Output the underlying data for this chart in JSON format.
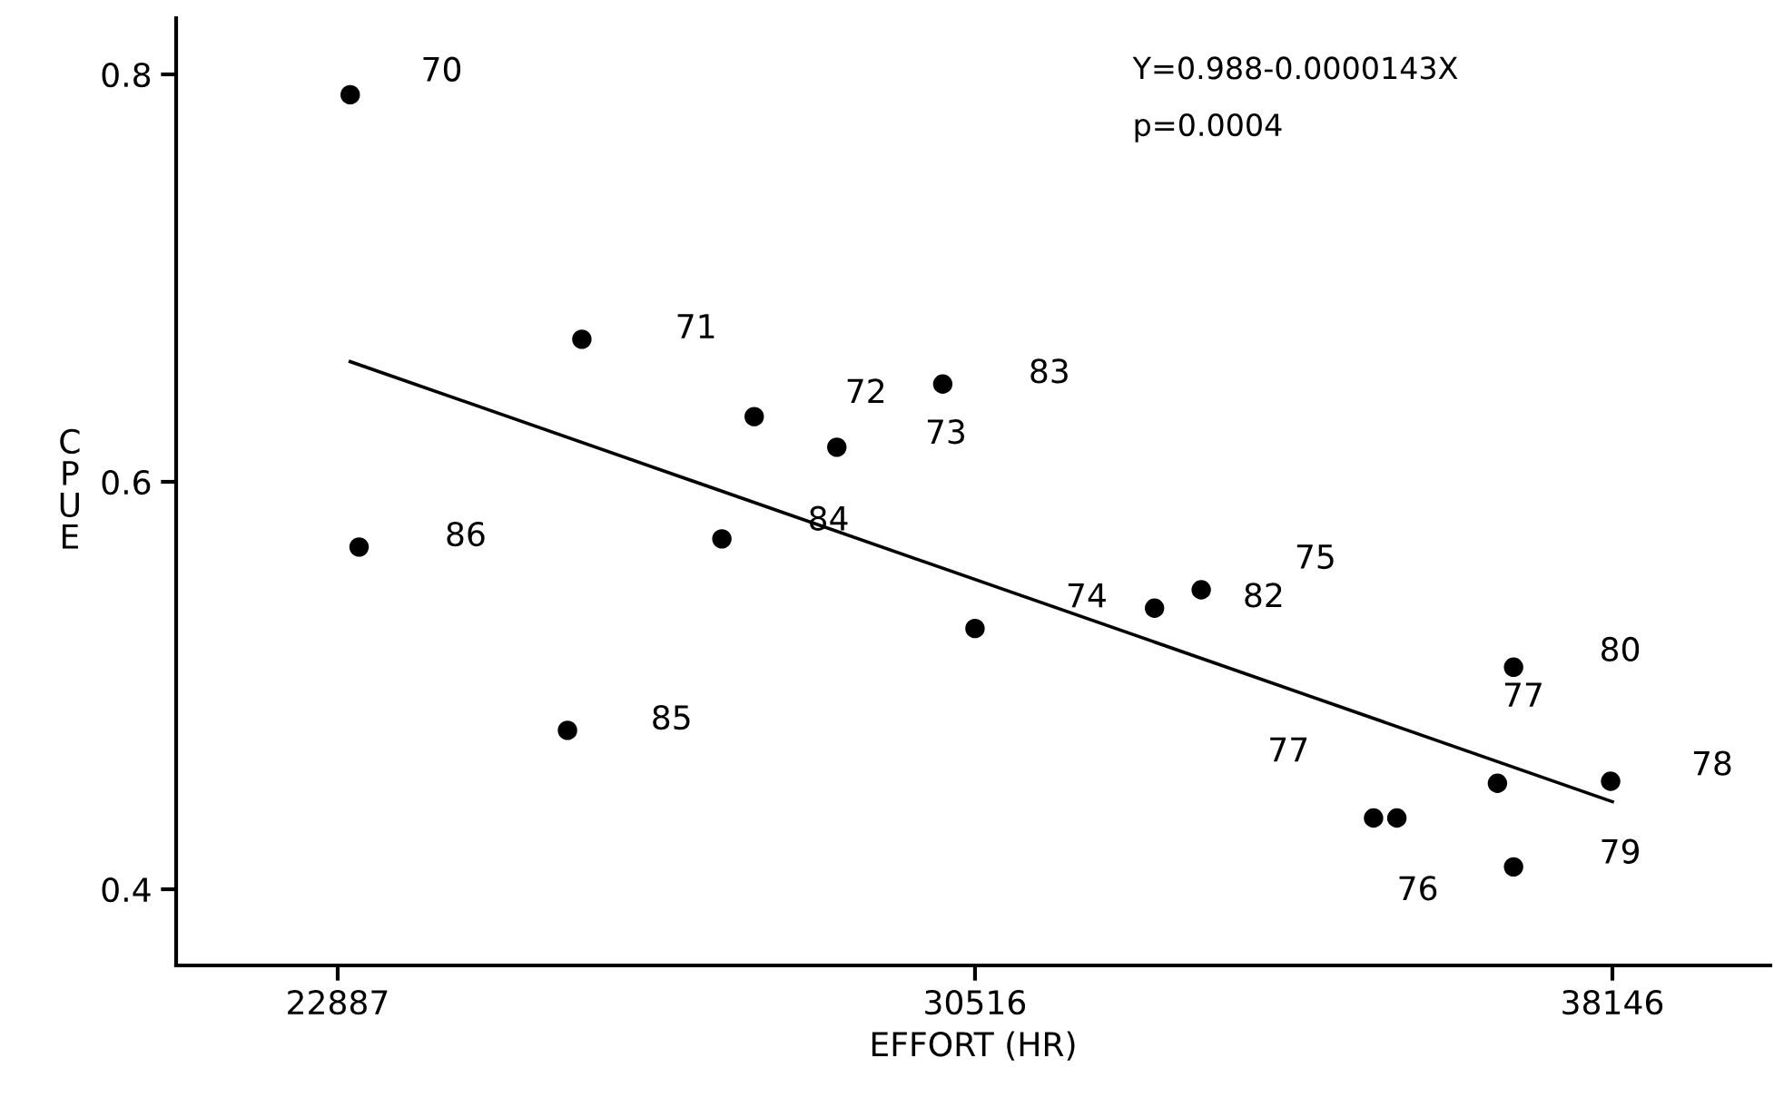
{
  "chart_data": {
    "type": "scatter",
    "xlabel": "EFFORT (HR)",
    "ylabel": "CPUE",
    "xlim": [
      20953,
      40037
    ],
    "ylim": [
      0.3626,
      0.8276
    ],
    "xticks": [
      22887,
      30516,
      38146
    ],
    "yticks": [
      {
        "value": 0.4,
        "label": "0.4"
      },
      {
        "value": 0.6,
        "label": "0.6"
      },
      {
        "value": 0.8,
        "label": "0.8"
      }
    ],
    "grid": false,
    "legend": false,
    "marker": "circle",
    "series": [
      {
        "color": "#000000",
        "x": [
          23037,
          25810,
          23143,
          25638,
          27873,
          27486,
          28862,
          30130,
          30516,
          32665,
          33224,
          36963,
          36770,
          38125,
          36963,
          35287,
          35566
        ],
        "values": [
          0.79,
          0.67,
          0.568,
          0.478,
          0.632,
          0.572,
          0.617,
          0.648,
          0.528,
          0.538,
          0.547,
          0.509,
          0.452,
          0.453,
          0.411,
          0.435,
          0.435
        ]
      },
      {
        "type": "line",
        "color": "#000000",
        "x": [
          23037,
          38146
        ],
        "values": [
          0.659,
          0.443
        ],
        "marker": "none",
        "line_style": "solid"
      }
    ],
    "annotations": [
      "Y=0.988-0.0000143X",
      "p=0.0004",
      {
        "text": "70",
        "x": 23037,
        "y": 0.79
      },
      {
        "text": "71",
        "x": 25810,
        "y": 0.67
      },
      {
        "text": "86",
        "x": 23143,
        "y": 0.568
      },
      {
        "text": "85",
        "x": 25638,
        "y": 0.478
      },
      {
        "text": "72",
        "x": 27873,
        "y": 0.632
      },
      {
        "text": "84",
        "x": 27486,
        "y": 0.572
      },
      {
        "text": "73",
        "x": 28862,
        "y": 0.617
      },
      {
        "text": "83",
        "x": 30130,
        "y": 0.648
      },
      {
        "text": "74",
        "x": 30516,
        "y": 0.528
      },
      {
        "text": "82",
        "x": 32665,
        "y": 0.538
      },
      {
        "text": "75",
        "x": 33224,
        "y": 0.547
      },
      {
        "text": "80",
        "x": 36963,
        "y": 0.509
      },
      {
        "text": "77",
        "x": 36770,
        "y": 0.452
      },
      {
        "text": "78",
        "x": 38125,
        "y": 0.453
      },
      {
        "text": "79",
        "x": 36963,
        "y": 0.411
      },
      {
        "text": "77",
        "x": 35287,
        "y": 0.435
      },
      {
        "text": "76",
        "x": 35566,
        "y": 0.435
      }
    ]
  }
}
